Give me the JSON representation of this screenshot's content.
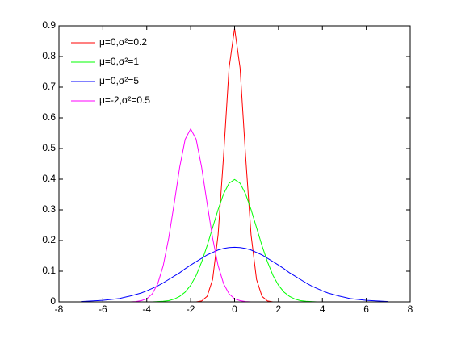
{
  "chart_data": {
    "type": "line",
    "x": [
      -7,
      -6.75,
      -6.5,
      -6.25,
      -6,
      -5.75,
      -5.5,
      -5.25,
      -5,
      -4.75,
      -4.5,
      -4.25,
      -4,
      -3.75,
      -3.5,
      -3.25,
      -3,
      -2.75,
      -2.5,
      -2.25,
      -2,
      -1.75,
      -1.5,
      -1.25,
      -1,
      -0.75,
      -0.5,
      -0.25,
      0,
      0.25,
      0.5,
      0.75,
      1,
      1.25,
      1.5,
      1.75,
      2,
      2.25,
      2.5,
      2.75,
      3,
      3.25,
      3.5,
      3.75,
      4,
      4.25,
      4.5,
      4.75,
      5,
      5.25,
      5.5,
      5.75,
      6,
      6.25,
      6.5,
      6.75,
      7
    ],
    "series": [
      {
        "name": "μ=0,σ²=0.2",
        "color": "#ff0000",
        "values": [
          0,
          0,
          0,
          0,
          0,
          0,
          0,
          0,
          0,
          0,
          0,
          0,
          0,
          0,
          0,
          0,
          0,
          0,
          0,
          0,
          0,
          0,
          0.003,
          0.018,
          0.073,
          0.219,
          0.477,
          0.763,
          0.892,
          0.763,
          0.477,
          0.219,
          0.073,
          0.018,
          0.003,
          0,
          0,
          0,
          0,
          0,
          0,
          0,
          0,
          0,
          0,
          0,
          0,
          0,
          0,
          0,
          0,
          0,
          0,
          0,
          0,
          0,
          0
        ]
      },
      {
        "name": "μ=0,σ²=1",
        "color": "#00ff00",
        "values": [
          0,
          0,
          0,
          0,
          0,
          0,
          0,
          0,
          0,
          0,
          0,
          0,
          0,
          0,
          0.001,
          0.002,
          0.004,
          0.009,
          0.018,
          0.032,
          0.054,
          0.086,
          0.13,
          0.183,
          0.242,
          0.301,
          0.352,
          0.387,
          0.399,
          0.387,
          0.352,
          0.301,
          0.242,
          0.183,
          0.13,
          0.086,
          0.054,
          0.032,
          0.018,
          0.009,
          0.004,
          0.002,
          0.001,
          0,
          0,
          0,
          0,
          0,
          0,
          0,
          0,
          0,
          0,
          0,
          0,
          0,
          0
        ]
      },
      {
        "name": "μ=0,σ²=5",
        "color": "#0000ff",
        "values": [
          0.001,
          0.002,
          0.003,
          0.004,
          0.005,
          0.007,
          0.009,
          0.011,
          0.015,
          0.019,
          0.024,
          0.029,
          0.036,
          0.044,
          0.052,
          0.062,
          0.073,
          0.084,
          0.095,
          0.108,
          0.12,
          0.131,
          0.142,
          0.153,
          0.161,
          0.169,
          0.174,
          0.177,
          0.178,
          0.177,
          0.174,
          0.169,
          0.161,
          0.153,
          0.142,
          0.131,
          0.12,
          0.108,
          0.095,
          0.084,
          0.073,
          0.062,
          0.052,
          0.044,
          0.036,
          0.029,
          0.024,
          0.019,
          0.015,
          0.011,
          0.009,
          0.007,
          0.005,
          0.004,
          0.003,
          0.002,
          0.001
        ]
      },
      {
        "name": "μ=-2,σ²=0.5",
        "color": "#ff00ff",
        "values": [
          0,
          0,
          0,
          0,
          0,
          0,
          0,
          0,
          0,
          0,
          0.001,
          0.004,
          0.01,
          0.026,
          0.059,
          0.118,
          0.208,
          0.321,
          0.439,
          0.53,
          0.564,
          0.53,
          0.439,
          0.321,
          0.208,
          0.118,
          0.059,
          0.026,
          0.01,
          0.004,
          0.001,
          0,
          0,
          0,
          0,
          0,
          0,
          0,
          0,
          0,
          0,
          0,
          0,
          0,
          0,
          0,
          0,
          0,
          0,
          0,
          0,
          0,
          0,
          0,
          0,
          0,
          0
        ]
      }
    ],
    "xlim": [
      -8,
      8
    ],
    "xticks": [
      -8,
      -6,
      -4,
      -2,
      0,
      2,
      4,
      6,
      8
    ],
    "ylim": [
      0,
      0.9
    ],
    "yticks": [
      0,
      0.1,
      0.2,
      0.3,
      0.4,
      0.5,
      0.6,
      0.7,
      0.8,
      0.9
    ],
    "legend": "northwest",
    "grid": false
  }
}
